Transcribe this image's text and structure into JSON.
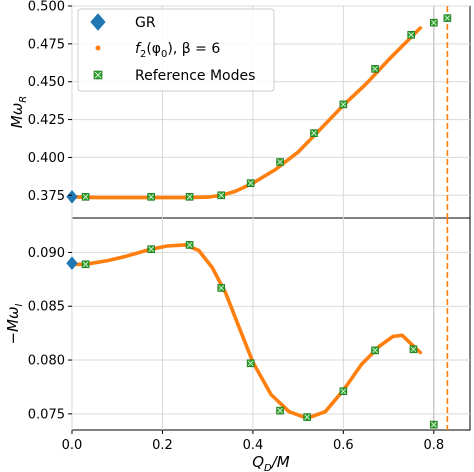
{
  "chart_data": [
    {
      "type": "scatter",
      "panel": "top",
      "ylabel_tex": [
        "M",
        "ω",
        "R"
      ],
      "xlim": [
        0,
        0.88
      ],
      "ylim": [
        0.36,
        0.5
      ],
      "yticks": [
        "0.375",
        "0.400",
        "0.425",
        "0.450",
        "0.475",
        "0.500"
      ],
      "yticks_values": [
        0.375,
        0.4,
        0.425,
        0.45,
        0.475,
        0.5
      ],
      "grid": true,
      "legend": {
        "placement": "top-left",
        "entries": [
          {
            "label": "GR",
            "marker": "diamond",
            "color": "#1f77b4"
          },
          {
            "label_parts": [
              "f",
              "2",
              "(φ",
              "0",
              "),  β = 6"
            ],
            "marker": "dot",
            "color": "#ff7f0e"
          },
          {
            "label": "Reference Modes",
            "marker": "square-x",
            "color": "#2ca02c"
          }
        ]
      },
      "series": [
        {
          "role": "gr",
          "color": "#1f77b4",
          "points": [
            [
              0.0,
              0.374
            ]
          ]
        },
        {
          "role": "curve",
          "color": "#ff7f0e",
          "x": [
            0.0,
            0.03,
            0.06,
            0.1,
            0.15,
            0.2,
            0.25,
            0.3,
            0.33,
            0.36,
            0.4,
            0.45,
            0.5,
            0.55,
            0.6,
            0.65,
            0.7,
            0.74,
            0.77
          ],
          "y": [
            0.374,
            0.3737,
            0.3735,
            0.3735,
            0.3735,
            0.3735,
            0.3735,
            0.3738,
            0.3749,
            0.3775,
            0.383,
            0.392,
            0.4035,
            0.419,
            0.4345,
            0.4485,
            0.4645,
            0.4765,
            0.4855
          ]
        },
        {
          "role": "reference",
          "color": "#2ca02c",
          "points": [
            [
              0.03,
              0.374
            ],
            [
              0.175,
              0.374
            ],
            [
              0.26,
              0.374
            ],
            [
              0.33,
              0.375
            ],
            [
              0.395,
              0.383
            ],
            [
              0.46,
              0.397
            ],
            [
              0.535,
              0.416
            ],
            [
              0.6,
              0.435
            ],
            [
              0.67,
              0.4585
            ],
            [
              0.75,
              0.481
            ],
            [
              0.8,
              0.489
            ],
            [
              0.83,
              0.492
            ]
          ]
        }
      ],
      "vlines": [
        {
          "x": 0.8,
          "style": "solid",
          "color": "#bbbbbb"
        },
        {
          "x": 0.83,
          "style": "dashed",
          "color": "#ff7f0e"
        }
      ]
    },
    {
      "type": "scatter",
      "panel": "bottom",
      "ylabel_tex": [
        "−M",
        "ω",
        "I"
      ],
      "xlabel_tex": [
        "Q",
        "D",
        "/M"
      ],
      "xlim": [
        0,
        0.88
      ],
      "ylim": [
        0.0735,
        0.0932
      ],
      "xticks": [
        "0.0",
        "0.2",
        "0.4",
        "0.6",
        "0.8"
      ],
      "xticks_values": [
        0.0,
        0.2,
        0.4,
        0.6,
        0.8
      ],
      "yticks": [
        "0.075",
        "0.080",
        "0.085",
        "0.090"
      ],
      "yticks_values": [
        0.075,
        0.08,
        0.085,
        0.09
      ],
      "grid": true,
      "series": [
        {
          "role": "gr",
          "color": "#1f77b4",
          "points": [
            [
              0.0,
              0.089
            ]
          ]
        },
        {
          "role": "curve",
          "color": "#ff7f0e",
          "x": [
            0.0,
            0.03,
            0.08,
            0.12,
            0.17,
            0.21,
            0.25,
            0.28,
            0.31,
            0.34,
            0.37,
            0.4,
            0.44,
            0.48,
            0.52,
            0.56,
            0.6,
            0.64,
            0.68,
            0.71,
            0.73,
            0.75,
            0.77
          ],
          "y": [
            0.0889,
            0.0889,
            0.08925,
            0.08965,
            0.09025,
            0.0906,
            0.0907,
            0.0902,
            0.0886,
            0.0862,
            0.083,
            0.0798,
            0.0768,
            0.0752,
            0.0746,
            0.0752,
            0.0772,
            0.0796,
            0.0813,
            0.0822,
            0.0823,
            0.0815,
            0.0807
          ]
        },
        {
          "role": "reference",
          "color": "#2ca02c",
          "points": [
            [
              0.03,
              0.0889
            ],
            [
              0.175,
              0.0903
            ],
            [
              0.26,
              0.0907
            ],
            [
              0.33,
              0.0867
            ],
            [
              0.395,
              0.0797
            ],
            [
              0.46,
              0.0753
            ],
            [
              0.52,
              0.0747
            ],
            [
              0.6,
              0.0771
            ],
            [
              0.67,
              0.0809
            ],
            [
              0.755,
              0.081
            ],
            [
              0.8,
              0.074
            ]
          ]
        }
      ],
      "vlines": [
        {
          "x": 0.8,
          "style": "solid",
          "color": "#bbbbbb"
        },
        {
          "x": 0.83,
          "style": "dashed",
          "color": "#ff7f0e"
        }
      ]
    }
  ]
}
